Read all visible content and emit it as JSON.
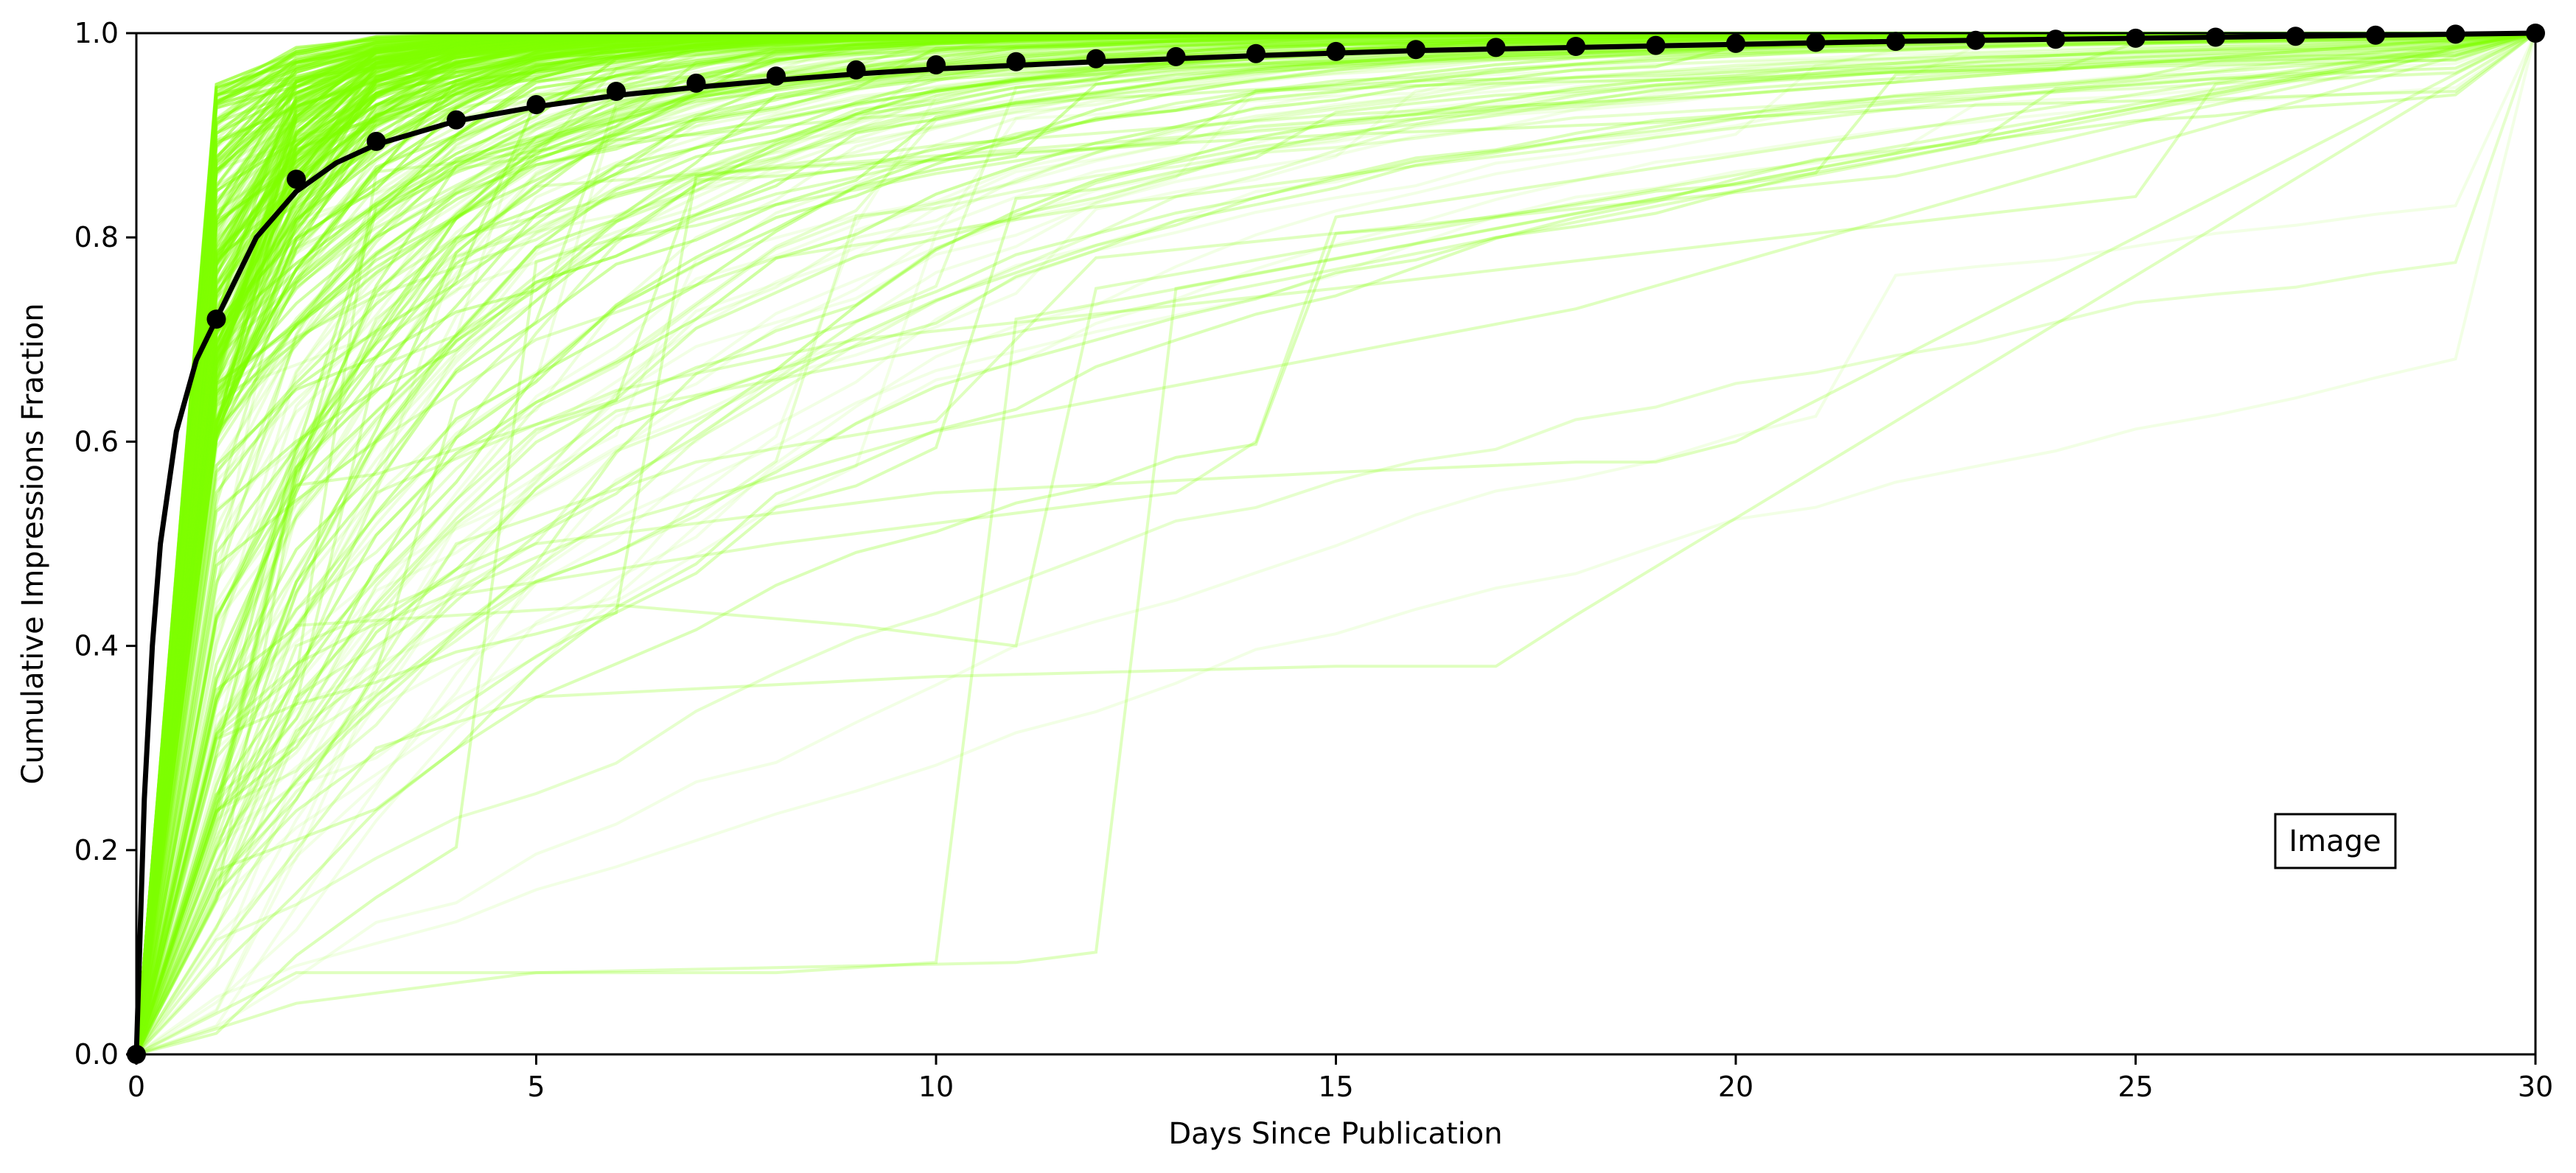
{
  "chart_data": {
    "type": "line",
    "title": "",
    "xlabel": "Days Since Publication",
    "ylabel": "Cumulative Impressions Fraction",
    "xlim": [
      0,
      30
    ],
    "ylim": [
      0,
      1
    ],
    "x_ticks": [
      0,
      5,
      10,
      15,
      20,
      25,
      30
    ],
    "y_ticks": [
      0.0,
      0.2,
      0.4,
      0.6,
      0.8,
      1.0
    ],
    "x_tick_labels": [
      "0",
      "5",
      "10",
      "15",
      "20",
      "25",
      "30"
    ],
    "y_tick_labels": [
      "0.0",
      "0.2",
      "0.4",
      "0.6",
      "0.8",
      "1.0"
    ],
    "grid": false,
    "annotation": "Image",
    "colors": {
      "individual": "#7fff00",
      "mean": "#000000"
    },
    "mean_points": {
      "x": [
        0,
        1,
        2,
        3,
        4,
        5,
        6,
        7,
        8,
        9,
        10,
        11,
        12,
        13,
        14,
        15,
        16,
        17,
        18,
        19,
        20,
        21,
        22,
        23,
        24,
        25,
        26,
        27,
        28,
        29,
        30
      ],
      "y": [
        0.0,
        0.72,
        0.857,
        0.894,
        0.915,
        0.93,
        0.943,
        0.951,
        0.958,
        0.964,
        0.969,
        0.972,
        0.975,
        0.977,
        0.98,
        0.982,
        0.984,
        0.986,
        0.987,
        0.988,
        0.99,
        0.991,
        0.992,
        0.993,
        0.994,
        0.995,
        0.996,
        0.997,
        0.998,
        0.999,
        1.0
      ]
    },
    "fit_curve": {
      "x": [
        0,
        0.1,
        0.2,
        0.3,
        0.5,
        0.75,
        1,
        1.5,
        2,
        2.5,
        3,
        4,
        5,
        6,
        7,
        8,
        9,
        10,
        12,
        14,
        16,
        18,
        20,
        22,
        24,
        26,
        28,
        30
      ],
      "y": [
        0.0,
        0.25,
        0.4,
        0.5,
        0.61,
        0.68,
        0.72,
        0.8,
        0.845,
        0.873,
        0.891,
        0.914,
        0.928,
        0.939,
        0.947,
        0.954,
        0.96,
        0.965,
        0.972,
        0.978,
        0.983,
        0.986,
        0.989,
        0.992,
        0.994,
        0.996,
        0.998,
        1.0
      ]
    },
    "individual_series_examples": [
      {
        "x": [
          0,
          1,
          2,
          30
        ],
        "y": [
          0.0,
          0.95,
          0.98,
          1.0
        ]
      },
      {
        "x": [
          0,
          1,
          2,
          3,
          30
        ],
        "y": [
          0.0,
          0.6,
          0.88,
          0.95,
          1.0
        ]
      },
      {
        "x": [
          0,
          1,
          2,
          3,
          5,
          30
        ],
        "y": [
          0.0,
          0.3,
          0.55,
          0.72,
          0.85,
          1.0
        ]
      },
      {
        "x": [
          0,
          1,
          2,
          4,
          6,
          30
        ],
        "y": [
          0.0,
          0.15,
          0.35,
          0.52,
          0.63,
          1.0
        ]
      },
      {
        "x": [
          0,
          2,
          8,
          10,
          11,
          30
        ],
        "y": [
          0.0,
          0.08,
          0.08,
          0.09,
          0.72,
          1.0
        ]
      },
      {
        "x": [
          0,
          2,
          5,
          11,
          12,
          13,
          30
        ],
        "y": [
          0.0,
          0.05,
          0.08,
          0.09,
          0.1,
          0.75,
          1.0
        ]
      },
      {
        "x": [
          0,
          3,
          5,
          10,
          15,
          17,
          18,
          30
        ],
        "y": [
          0.0,
          0.3,
          0.35,
          0.37,
          0.38,
          0.38,
          0.43,
          1.0
        ]
      },
      {
        "x": [
          0,
          2,
          4,
          8,
          13,
          14,
          15,
          30
        ],
        "y": [
          0.0,
          0.35,
          0.45,
          0.5,
          0.55,
          0.6,
          0.82,
          1.0
        ]
      },
      {
        "x": [
          0,
          2,
          5,
          10,
          15,
          18,
          19,
          20,
          30
        ],
        "y": [
          0.0,
          0.4,
          0.5,
          0.55,
          0.57,
          0.58,
          0.58,
          0.6,
          1.0
        ]
      },
      {
        "x": [
          0,
          2,
          6,
          9,
          11,
          12,
          30
        ],
        "y": [
          0.0,
          0.42,
          0.44,
          0.42,
          0.4,
          0.75,
          1.0
        ]
      },
      {
        "x": [
          0,
          3,
          6,
          9,
          15,
          25,
          26,
          30
        ],
        "y": [
          0.0,
          0.55,
          0.65,
          0.7,
          0.75,
          0.84,
          0.95,
          1.0
        ]
      },
      {
        "x": [
          0,
          1,
          3,
          5,
          8,
          12,
          16,
          30
        ],
        "y": [
          0.0,
          0.35,
          0.6,
          0.7,
          0.78,
          0.83,
          0.87,
          1.0
        ]
      },
      {
        "x": [
          0,
          1,
          2,
          4,
          7,
          10,
          15,
          20,
          30
        ],
        "y": [
          0.0,
          0.5,
          0.7,
          0.8,
          0.86,
          0.89,
          0.92,
          0.94,
          1.0
        ]
      },
      {
        "x": [
          0,
          1,
          2,
          5,
          10,
          30
        ],
        "y": [
          0.0,
          0.85,
          0.9,
          0.94,
          0.96,
          1.0
        ]
      },
      {
        "x": [
          0,
          1,
          3,
          6,
          10,
          18,
          30
        ],
        "y": [
          0.0,
          0.2,
          0.42,
          0.52,
          0.61,
          0.73,
          1.0
        ]
      },
      {
        "x": [
          0,
          2,
          4,
          7,
          10,
          12,
          22,
          30
        ],
        "y": [
          0.0,
          0.25,
          0.5,
          0.58,
          0.62,
          0.78,
          0.86,
          1.0
        ]
      }
    ]
  }
}
